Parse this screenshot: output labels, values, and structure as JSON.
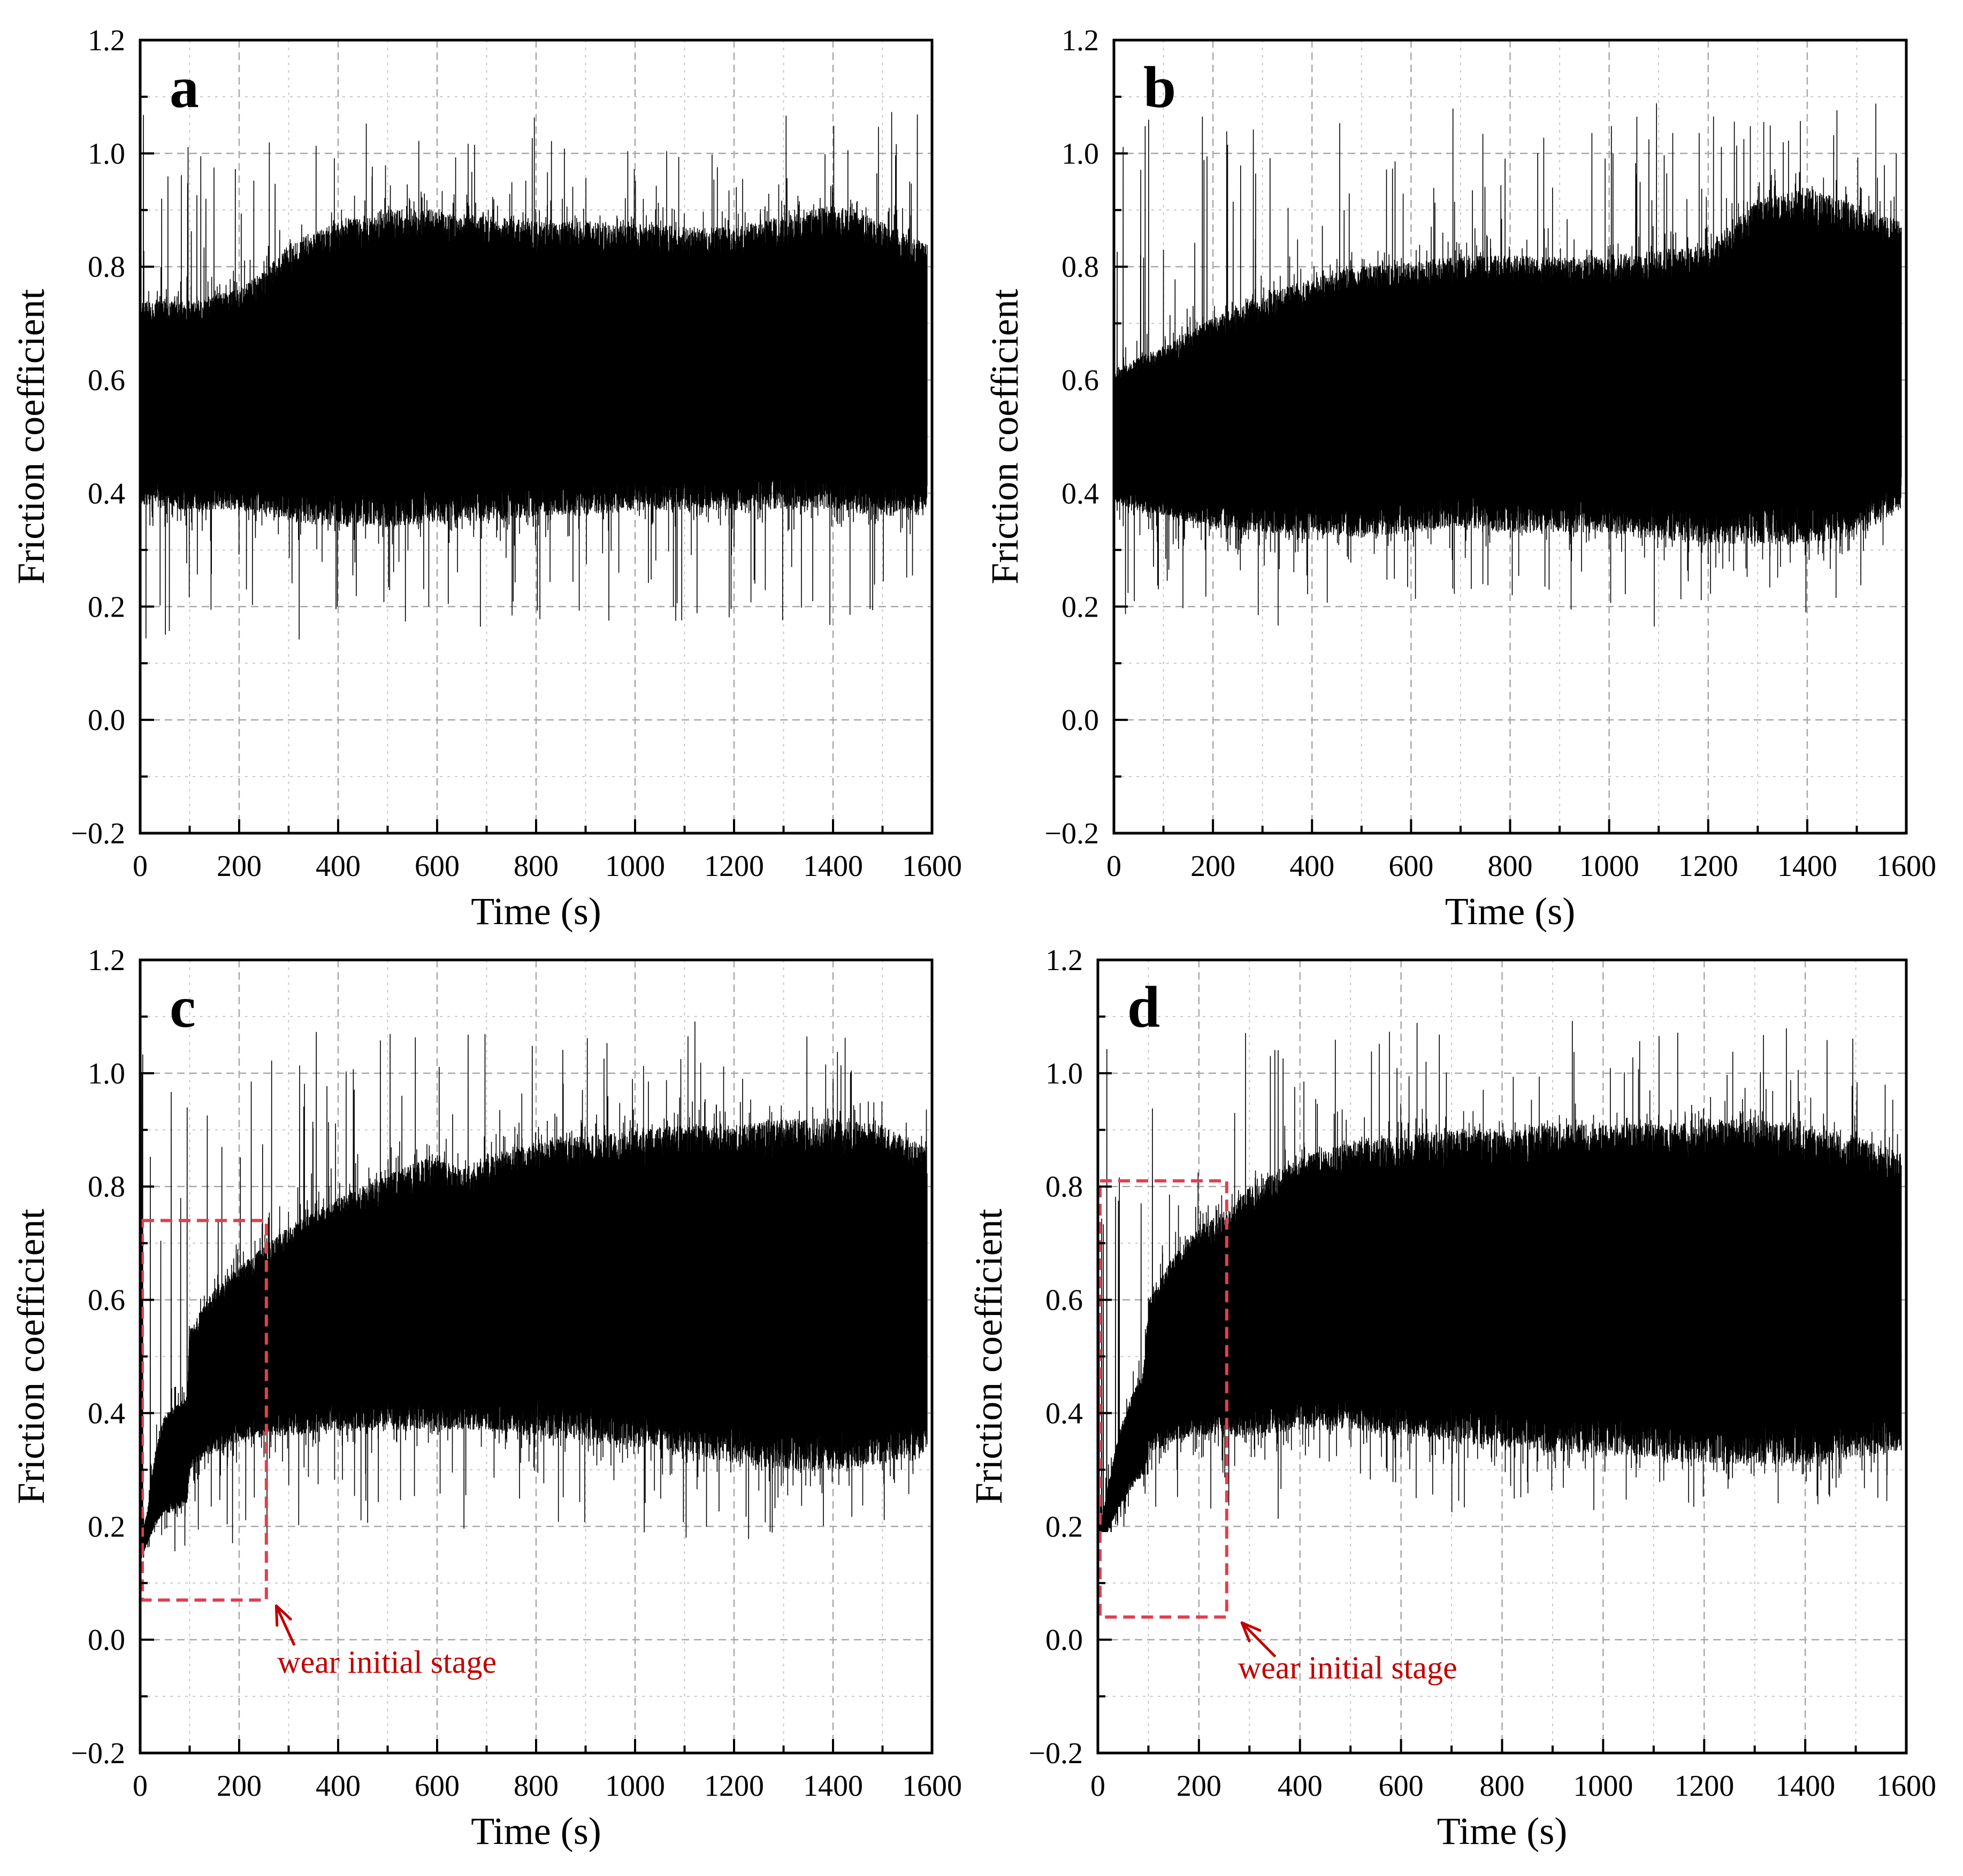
{
  "chart_data": [
    {
      "type": "line",
      "panel_label": "a",
      "xlabel": "Time (s)",
      "ylabel": "Friction coefficient",
      "xlim": [
        0,
        1600
      ],
      "ylim": [
        -0.2,
        1.2
      ],
      "x_ticks": [
        0,
        200,
        400,
        600,
        800,
        1000,
        1200,
        1400,
        1600
      ],
      "x_tick_labels": [
        "0",
        "200",
        "400",
        "600",
        "800",
        "1000",
        "1200",
        "1400",
        "1600"
      ],
      "y_ticks": [
        -0.2,
        0.0,
        0.2,
        0.4,
        0.6,
        0.8,
        1.0,
        1.2
      ],
      "y_tick_labels": [
        "−0.2",
        "0.0",
        "0.2",
        "0.4",
        "0.6",
        "0.8",
        "1.0",
        "1.2"
      ],
      "grid": true,
      "series": [
        {
          "name": "friction coefficient",
          "color": "#000000",
          "upper_envelope": {
            "x": [
              0,
              100,
              200,
              260,
              300,
              400,
              500,
              600,
              700,
              800,
              900,
              1000,
              1100,
              1200,
              1300,
              1400,
              1500,
              1590
            ],
            "y": [
              0.74,
              0.74,
              0.76,
              0.8,
              0.84,
              0.88,
              0.9,
              0.9,
              0.89,
              0.88,
              0.88,
              0.88,
              0.87,
              0.87,
              0.89,
              0.91,
              0.88,
              0.84
            ]
          },
          "lower_envelope": {
            "x": [
              0,
              100,
              200,
              260,
              300,
              400,
              500,
              600,
              700,
              800,
              900,
              1000,
              1100,
              1200,
              1300,
              1400,
              1500,
              1590
            ],
            "y": [
              0.38,
              0.37,
              0.37,
              0.36,
              0.35,
              0.34,
              0.34,
              0.35,
              0.35,
              0.36,
              0.36,
              0.37,
              0.37,
              0.37,
              0.37,
              0.37,
              0.36,
              0.36
            ]
          },
          "peak_max": 1.09,
          "trough_min": 0.09
        }
      ]
    },
    {
      "type": "line",
      "panel_label": "b",
      "xlabel": "Time (s)",
      "ylabel": "Friction coefficient",
      "xlim": [
        0,
        1600
      ],
      "ylim": [
        -0.2,
        1.2
      ],
      "x_ticks": [
        0,
        200,
        400,
        600,
        800,
        1000,
        1200,
        1400,
        1600
      ],
      "x_tick_labels": [
        "0",
        "200",
        "400",
        "600",
        "800",
        "1000",
        "1200",
        "1400",
        "1600"
      ],
      "y_ticks": [
        -0.2,
        0.0,
        0.2,
        0.4,
        0.6,
        0.8,
        1.0,
        1.2
      ],
      "y_tick_labels": [
        "−0.2",
        "0.0",
        "0.2",
        "0.4",
        "0.6",
        "0.8",
        "1.0",
        "1.2"
      ],
      "grid": true,
      "series": [
        {
          "name": "friction coefficient",
          "color": "#000000",
          "upper_envelope": {
            "x": [
              0,
              100,
              200,
              300,
              400,
              500,
              600,
              700,
              800,
              900,
              1000,
              1100,
              1200,
              1250,
              1300,
              1400,
              1500,
              1590
            ],
            "y": [
              0.62,
              0.66,
              0.71,
              0.75,
              0.78,
              0.8,
              0.81,
              0.82,
              0.82,
              0.82,
              0.82,
              0.83,
              0.84,
              0.88,
              0.92,
              0.94,
              0.91,
              0.88
            ]
          },
          "lower_envelope": {
            "x": [
              0,
              100,
              200,
              300,
              400,
              500,
              600,
              700,
              800,
              900,
              1000,
              1100,
              1200,
              1250,
              1300,
              1400,
              1500,
              1590
            ],
            "y": [
              0.38,
              0.36,
              0.34,
              0.33,
              0.33,
              0.32,
              0.33,
              0.34,
              0.33,
              0.33,
              0.33,
              0.32,
              0.31,
              0.31,
              0.31,
              0.31,
              0.32,
              0.37
            ]
          },
          "peak_max": 1.12,
          "trough_min": 0.14
        }
      ]
    },
    {
      "type": "line",
      "panel_label": "c",
      "xlabel": "Time (s)",
      "ylabel": "Friction coefficient",
      "xlim": [
        0,
        1600
      ],
      "ylim": [
        -0.2,
        1.2
      ],
      "x_ticks": [
        0,
        200,
        400,
        600,
        800,
        1000,
        1200,
        1400,
        1600
      ],
      "x_tick_labels": [
        "0",
        "200",
        "400",
        "600",
        "800",
        "1000",
        "1200",
        "1400",
        "1600"
      ],
      "y_ticks": [
        -0.2,
        0.0,
        0.2,
        0.4,
        0.6,
        0.8,
        1.0,
        1.2
      ],
      "y_tick_labels": [
        "−0.2",
        "0.0",
        "0.2",
        "0.4",
        "0.6",
        "0.8",
        "1.0",
        "1.2"
      ],
      "grid": true,
      "series": [
        {
          "name": "friction coefficient",
          "color": "#000000",
          "upper_envelope": {
            "x": [
              0,
              15,
              30,
              50,
              80,
              95,
              100,
              150,
              200,
              260,
              300,
              400,
              500,
              600,
              650,
              700,
              800,
              900,
              1000,
              1100,
              1200,
              1300,
              1400,
              1500,
              1590
            ],
            "y": [
              0.17,
              0.23,
              0.33,
              0.4,
              0.42,
              0.43,
              0.55,
              0.62,
              0.66,
              0.7,
              0.73,
              0.78,
              0.82,
              0.86,
              0.83,
              0.85,
              0.88,
              0.89,
              0.9,
              0.91,
              0.91,
              0.92,
              0.92,
              0.91,
              0.87
            ]
          },
          "lower_envelope": {
            "x": [
              0,
              15,
              30,
              50,
              80,
              95,
              100,
              150,
              200,
              260,
              300,
              400,
              500,
              600,
              700,
              800,
              900,
              1000,
              1100,
              1200,
              1300,
              1400,
              1500,
              1590
            ],
            "y": [
              0.14,
              0.17,
              0.2,
              0.22,
              0.23,
              0.24,
              0.3,
              0.33,
              0.35,
              0.36,
              0.36,
              0.37,
              0.37,
              0.37,
              0.37,
              0.36,
              0.35,
              0.34,
              0.33,
              0.31,
              0.3,
              0.3,
              0.31,
              0.33
            ]
          },
          "peak_max": 1.12,
          "trough_min": 0.14
        }
      ],
      "annotation": {
        "text": "wear initial stage",
        "color": "#c00000",
        "box_x": [
          0,
          255
        ],
        "box_y": [
          0.07,
          0.74
        ],
        "arrow_tail": [
          290,
          -0.01
        ],
        "arrow_head": [
          275,
          0.06
        ],
        "text_x": 290,
        "text_y": -0.03
      }
    },
    {
      "type": "line",
      "panel_label": "d",
      "xlabel": "Time (s)",
      "ylabel": "Friction coefficient",
      "xlim": [
        0,
        1600
      ],
      "ylim": [
        -0.2,
        1.2
      ],
      "x_ticks": [
        0,
        200,
        400,
        600,
        800,
        1000,
        1200,
        1400,
        1600
      ],
      "x_tick_labels": [
        "0",
        "200",
        "400",
        "600",
        "800",
        "1000",
        "1200",
        "1400",
        "1600"
      ],
      "y_ticks": [
        -0.2,
        0.0,
        0.2,
        0.4,
        0.6,
        0.8,
        1.0,
        1.2
      ],
      "y_tick_labels": [
        "−0.2",
        "0.0",
        "0.2",
        "0.4",
        "0.6",
        "0.8",
        "1.0",
        "1.2"
      ],
      "grid": true,
      "series": [
        {
          "name": "friction coefficient",
          "color": "#000000",
          "upper_envelope": {
            "x": [
              0,
              20,
              40,
              70,
              90,
              100,
              150,
              200,
              260,
              300,
              400,
              500,
              600,
              700,
              800,
              900,
              1000,
              1100,
              1200,
              1300,
              1400,
              1500,
              1590
            ],
            "y": [
              0.18,
              0.27,
              0.36,
              0.44,
              0.47,
              0.6,
              0.68,
              0.73,
              0.76,
              0.8,
              0.85,
              0.88,
              0.89,
              0.9,
              0.9,
              0.91,
              0.91,
              0.91,
              0.92,
              0.92,
              0.91,
              0.89,
              0.86
            ]
          },
          "lower_envelope": {
            "x": [
              0,
              20,
              40,
              70,
              90,
              100,
              150,
              200,
              260,
              300,
              400,
              500,
              600,
              700,
              800,
              900,
              1000,
              1100,
              1200,
              1300,
              1400,
              1500,
              1590
            ],
            "y": [
              0.15,
              0.19,
              0.23,
              0.27,
              0.29,
              0.33,
              0.35,
              0.36,
              0.36,
              0.36,
              0.37,
              0.37,
              0.36,
              0.35,
              0.34,
              0.33,
              0.33,
              0.32,
              0.31,
              0.31,
              0.31,
              0.32,
              0.33
            ]
          },
          "peak_max": 1.13,
          "trough_min": 0.19
        }
      ],
      "annotation": {
        "text": "wear initial stage",
        "color": "#c00000",
        "box_x": [
          0,
          255
        ],
        "box_y": [
          0.04,
          0.81
        ],
        "arrow_tail": [
          330,
          -0.03
        ],
        "arrow_head": [
          285,
          0.03
        ],
        "text_x": 290,
        "text_y": -0.04
      }
    }
  ]
}
